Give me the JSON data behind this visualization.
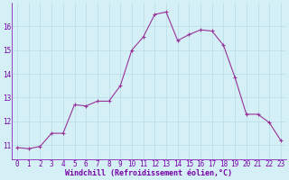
{
  "x": [
    0,
    1,
    2,
    3,
    4,
    5,
    6,
    7,
    8,
    9,
    10,
    11,
    12,
    13,
    14,
    15,
    16,
    17,
    18,
    19,
    20,
    21,
    22,
    23
  ],
  "y": [
    10.9,
    10.85,
    10.95,
    11.5,
    11.5,
    12.7,
    12.65,
    12.85,
    12.85,
    13.5,
    15.0,
    15.55,
    16.5,
    16.6,
    15.4,
    15.65,
    15.85,
    15.8,
    15.2,
    13.85,
    12.3,
    12.3,
    11.95,
    11.2
  ],
  "line_color": "#993399",
  "marker": "+",
  "marker_size": 3,
  "marker_color": "#993399",
  "bg_color": "#d4eff5",
  "grid_color": "#b8dde8",
  "xlabel": "Windchill (Refroidissement éolien,°C)",
  "xlabel_color": "#7700aa",
  "xlabel_fontsize": 6.0,
  "tick_color": "#7700aa",
  "tick_fontsize": 5.5,
  "yticks": [
    11,
    12,
    13,
    14,
    15,
    16
  ],
  "ylim": [
    10.4,
    17.0
  ],
  "xlim": [
    -0.5,
    23.5
  ]
}
